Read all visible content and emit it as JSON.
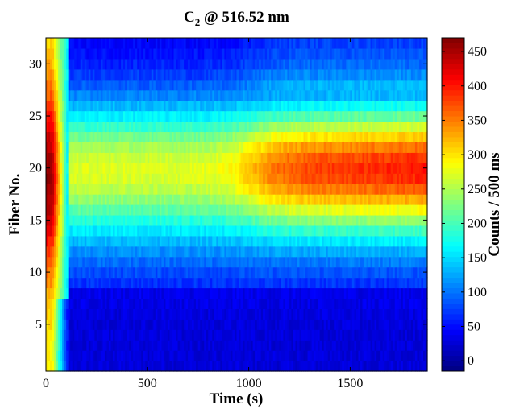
{
  "chart_data": {
    "type": "heatmap",
    "title": {
      "main": "C",
      "subscript": "2",
      "rest": " @ 516.52 nm"
    },
    "xlabel": "Time (s)",
    "ylabel": "Fiber No.",
    "colorbar_label": "Counts / 500 ms",
    "xlim": [
      0,
      1880
    ],
    "ylim": [
      0.5,
      32.5
    ],
    "x_ticks": [
      0,
      500,
      1000,
      1500
    ],
    "y_ticks": [
      5,
      10,
      15,
      20,
      25,
      30
    ],
    "color_range": [
      -15,
      470
    ],
    "colorbar_ticks": [
      0,
      50,
      100,
      150,
      200,
      250,
      300,
      350,
      400,
      450
    ],
    "colormap": "jet",
    "fibers": 32,
    "time_samples": 188,
    "time_step_s": 10,
    "grid": false,
    "colorbar_position": "right"
  }
}
